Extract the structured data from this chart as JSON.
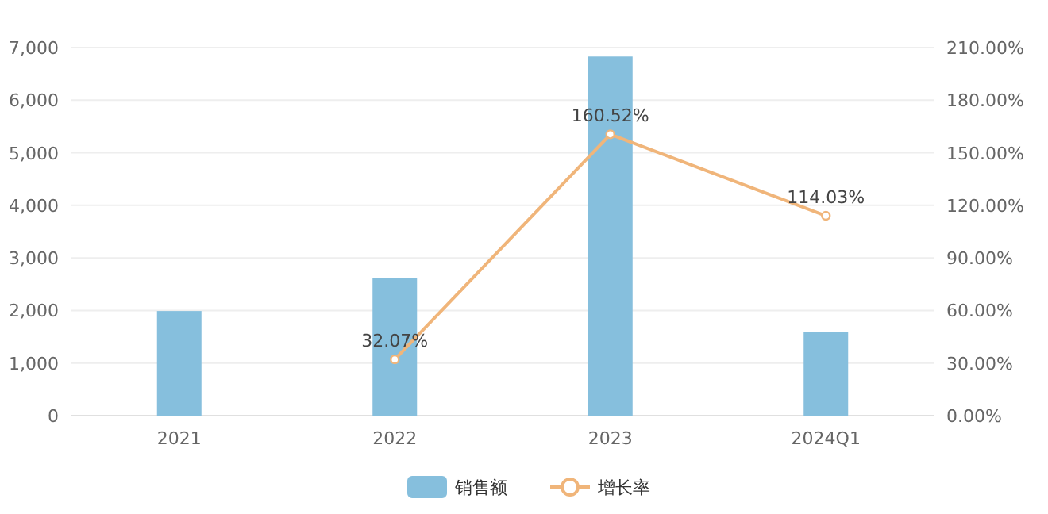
{
  "chart_data": {
    "type": "bar",
    "categories": [
      "2021",
      "2022",
      "2023",
      "2024Q1"
    ],
    "series": [
      {
        "name": "销售额",
        "color": "#86bfdd",
        "values": [
          1990,
          2620,
          6830,
          1590
        ]
      },
      {
        "name": "增长率",
        "type": "line",
        "axis": "y2",
        "color": "#f0b57a",
        "marker": "circle",
        "values": [
          null,
          32.07,
          160.52,
          114.03
        ],
        "value_labels": [
          null,
          "32.07%",
          "160.52%",
          "114.03%"
        ]
      }
    ],
    "ylim": [
      0,
      7000
    ],
    "yticks": [
      0,
      {
        "value": 1000,
        "label": "1,000"
      },
      {
        "value": 2000,
        "label": "2,000"
      },
      {
        "value": 3000,
        "label": "3,000"
      },
      {
        "value": 4000,
        "label": "4,000"
      },
      {
        "value": 5000,
        "label": "5,000"
      },
      {
        "value": 6000,
        "label": "6,000"
      },
      {
        "value": 7000,
        "label": "7,000"
      }
    ],
    "y2lim": [
      0,
      210
    ],
    "y2ticks": [
      {
        "value": 0,
        "label": "0.00%"
      },
      {
        "value": 30,
        "label": "30.00%"
      },
      {
        "value": 60,
        "label": "60.00%"
      },
      {
        "value": 90,
        "label": "90.00%"
      },
      {
        "value": 120,
        "label": "120.00%"
      },
      {
        "value": 150,
        "label": "150.00%"
      },
      {
        "value": 180,
        "label": "180.00%"
      },
      {
        "value": 210,
        "label": "210.00%"
      }
    ],
    "grid": "y",
    "legend": "bottom"
  }
}
